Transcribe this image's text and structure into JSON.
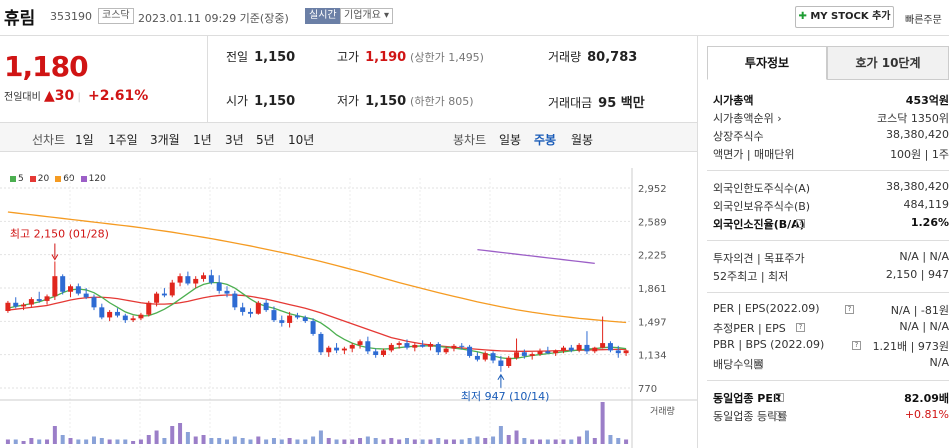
{
  "header": {
    "name": "휴림",
    "code": "353190",
    "market": "코스닥",
    "datetime": "2023.01.11 09:29 기준(장중)",
    "realtime": "실시간",
    "company_info": "기업개요 ▾",
    "mystock": "MY STOCK 추가",
    "quick_order": "빠른주문"
  },
  "price": {
    "current": "1,180",
    "change_label": "전일대비",
    "change": "▲30",
    "change_pct": "+2.61%"
  },
  "quote": {
    "prev_label": "전일",
    "prev": "1,150",
    "open_label": "시가",
    "open": "1,150",
    "high_label": "고가",
    "high": "1,190",
    "upper_limit": "(상한가 1,495)",
    "low_label": "저가",
    "low": "1,150",
    "lower_limit": "(하한가 805)",
    "volume_label": "거래량",
    "volume": "80,783",
    "amount_label": "거래대금",
    "amount": "95 백만"
  },
  "periods": {
    "line_label": "선차트",
    "line": [
      "1일",
      "1주일",
      "3개월",
      "1년",
      "3년",
      "5년",
      "10년"
    ],
    "candle_label": "봉차트",
    "candle": [
      "일봉",
      "주봉",
      "월봉"
    ],
    "selected": "주봉"
  },
  "chart_data": {
    "type": "candlestick",
    "ma_legend": [
      {
        "name": "5",
        "color": "#4caf50"
      },
      {
        "name": "20",
        "color": "#e53935"
      },
      {
        "name": "60",
        "color": "#f59b22"
      },
      {
        "name": "120",
        "color": "#9c5fc7"
      }
    ],
    "y_ticks": [
      "2,952",
      "2,589",
      "2,225",
      "1,861",
      "1,497",
      "1,134",
      "770"
    ],
    "ylim": [
      770,
      2952
    ],
    "high_annotation": "최고 2,150 (01/28)",
    "low_annotation": "최저 947 (10/14)",
    "volume_label": "거래량",
    "candles": [
      [
        1610,
        1720,
        1590,
        1700
      ],
      [
        1700,
        1760,
        1640,
        1660
      ],
      [
        1660,
        1700,
        1620,
        1680
      ],
      [
        1680,
        1760,
        1650,
        1740
      ],
      [
        1740,
        1820,
        1700,
        1720
      ],
      [
        1720,
        1790,
        1680,
        1770
      ],
      [
        1770,
        2150,
        1730,
        1990
      ],
      [
        1990,
        2010,
        1790,
        1820
      ],
      [
        1820,
        1900,
        1760,
        1880
      ],
      [
        1880,
        1910,
        1780,
        1800
      ],
      [
        1800,
        1860,
        1740,
        1760
      ],
      [
        1760,
        1790,
        1620,
        1650
      ],
      [
        1650,
        1690,
        1520,
        1540
      ],
      [
        1540,
        1620,
        1500,
        1600
      ],
      [
        1600,
        1640,
        1540,
        1560
      ],
      [
        1560,
        1580,
        1480,
        1510
      ],
      [
        1510,
        1560,
        1490,
        1530
      ],
      [
        1530,
        1590,
        1510,
        1570
      ],
      [
        1570,
        1720,
        1550,
        1700
      ],
      [
        1700,
        1820,
        1660,
        1800
      ],
      [
        1800,
        1860,
        1760,
        1780
      ],
      [
        1780,
        1950,
        1760,
        1920
      ],
      [
        1920,
        2020,
        1880,
        1990
      ],
      [
        1990,
        2040,
        1890,
        1910
      ],
      [
        1910,
        1990,
        1860,
        1960
      ],
      [
        1960,
        2030,
        1930,
        2000
      ],
      [
        2000,
        2060,
        1900,
        1920
      ],
      [
        1920,
        2000,
        1800,
        1830
      ],
      [
        1830,
        1880,
        1760,
        1800
      ],
      [
        1800,
        1830,
        1620,
        1650
      ],
      [
        1650,
        1700,
        1560,
        1600
      ],
      [
        1600,
        1640,
        1540,
        1580
      ],
      [
        1580,
        1720,
        1570,
        1700
      ],
      [
        1700,
        1730,
        1600,
        1620
      ],
      [
        1620,
        1660,
        1490,
        1510
      ],
      [
        1510,
        1560,
        1440,
        1480
      ],
      [
        1480,
        1600,
        1430,
        1560
      ],
      [
        1560,
        1590,
        1520,
        1540
      ],
      [
        1540,
        1560,
        1480,
        1500
      ],
      [
        1500,
        1530,
        1340,
        1360
      ],
      [
        1360,
        1380,
        1130,
        1160
      ],
      [
        1160,
        1230,
        1110,
        1210
      ],
      [
        1210,
        1260,
        1150,
        1180
      ],
      [
        1180,
        1220,
        1140,
        1200
      ],
      [
        1200,
        1260,
        1160,
        1240
      ],
      [
        1240,
        1300,
        1200,
        1280
      ],
      [
        1280,
        1330,
        1140,
        1170
      ],
      [
        1170,
        1200,
        1100,
        1130
      ],
      [
        1130,
        1200,
        1110,
        1180
      ],
      [
        1180,
        1260,
        1160,
        1240
      ],
      [
        1240,
        1280,
        1200,
        1260
      ],
      [
        1260,
        1300,
        1190,
        1210
      ],
      [
        1210,
        1260,
        1170,
        1240
      ],
      [
        1240,
        1290,
        1210,
        1220
      ],
      [
        1220,
        1270,
        1180,
        1250
      ],
      [
        1250,
        1270,
        1130,
        1160
      ],
      [
        1160,
        1220,
        1140,
        1200
      ],
      [
        1200,
        1250,
        1170,
        1230
      ],
      [
        1230,
        1260,
        1190,
        1220
      ],
      [
        1220,
        1240,
        1100,
        1120
      ],
      [
        1120,
        1160,
        1060,
        1080
      ],
      [
        1080,
        1170,
        1060,
        1150
      ],
      [
        1150,
        1170,
        1040,
        1070
      ],
      [
        1070,
        1120,
        947,
        1010
      ],
      [
        1010,
        1120,
        990,
        1100
      ],
      [
        1100,
        1310,
        1080,
        1160
      ],
      [
        1160,
        1190,
        1090,
        1120
      ],
      [
        1120,
        1160,
        1080,
        1140
      ],
      [
        1140,
        1200,
        1120,
        1170
      ],
      [
        1170,
        1220,
        1140,
        1150
      ],
      [
        1150,
        1190,
        1120,
        1180
      ],
      [
        1180,
        1230,
        1150,
        1210
      ],
      [
        1210,
        1240,
        1160,
        1180
      ],
      [
        1180,
        1260,
        1160,
        1240
      ],
      [
        1240,
        1390,
        1140,
        1170
      ],
      [
        1170,
        1220,
        1150,
        1210
      ],
      [
        1210,
        1550,
        1200,
        1260
      ],
      [
        1260,
        1280,
        1160,
        1180
      ],
      [
        1180,
        1230,
        1100,
        1150
      ],
      [
        1150,
        1190,
        1120,
        1180
      ]
    ],
    "volume": [
      3,
      3,
      2,
      4,
      3,
      3,
      12,
      6,
      4,
      3,
      3,
      5,
      4,
      3,
      3,
      3,
      2,
      3,
      6,
      9,
      4,
      12,
      14,
      8,
      5,
      6,
      4,
      4,
      3,
      5,
      4,
      3,
      5,
      3,
      4,
      3,
      4,
      3,
      3,
      5,
      9,
      4,
      3,
      3,
      3,
      4,
      5,
      4,
      3,
      4,
      3,
      4,
      3,
      3,
      3,
      4,
      3,
      3,
      3,
      4,
      5,
      4,
      5,
      12,
      6,
      9,
      4,
      3,
      3,
      3,
      3,
      3,
      3,
      5,
      9,
      4,
      28,
      6,
      4,
      3
    ],
    "ma5": [
      1640,
      1660,
      1675,
      1690,
      1710,
      1740,
      1770,
      1810,
      1840,
      1850,
      1840,
      1810,
      1760,
      1700,
      1650,
      1600,
      1570,
      1555,
      1560,
      1590,
      1630,
      1680,
      1740,
      1800,
      1860,
      1900,
      1920,
      1920,
      1900,
      1860,
      1800,
      1740,
      1690,
      1660,
      1640,
      1610,
      1580,
      1560,
      1540,
      1520,
      1480,
      1420,
      1350,
      1300,
      1260,
      1230,
      1210,
      1200,
      1195,
      1200,
      1210,
      1220,
      1225,
      1230,
      1230,
      1225,
      1215,
      1205,
      1195,
      1180,
      1165,
      1145,
      1120,
      1100,
      1090,
      1095,
      1110,
      1125,
      1135,
      1145,
      1155,
      1165,
      1175,
      1185,
      1195,
      1200,
      1210,
      1215,
      1210,
      1200
    ],
    "ma20": [
      1620,
      1630,
      1640,
      1650,
      1660,
      1670,
      1690,
      1710,
      1730,
      1745,
      1755,
      1760,
      1760,
      1755,
      1745,
      1730,
      1715,
      1700,
      1690,
      1685,
      1685,
      1690,
      1700,
      1715,
      1735,
      1755,
      1770,
      1780,
      1785,
      1785,
      1780,
      1770,
      1755,
      1740,
      1720,
      1700,
      1680,
      1660,
      1640,
      1615,
      1590,
      1560,
      1530,
      1500,
      1470,
      1440,
      1410,
      1380,
      1350,
      1320,
      1300,
      1280,
      1265,
      1250,
      1240,
      1230,
      1222,
      1215,
      1208,
      1200,
      1193,
      1186,
      1180,
      1175,
      1172,
      1170,
      1170,
      1171,
      1172,
      1174,
      1176,
      1178,
      1180,
      1182,
      1184,
      1186,
      1188,
      1190,
      1191,
      1192
    ],
    "ma60": [
      2690,
      2680,
      2670,
      2660,
      2650,
      2640,
      2630,
      2620,
      2610,
      2600,
      2590,
      2580,
      2570,
      2560,
      2550,
      2540,
      2530,
      2518,
      2506,
      2494,
      2482,
      2470,
      2456,
      2442,
      2428,
      2414,
      2400,
      2384,
      2368,
      2352,
      2336,
      2320,
      2302,
      2284,
      2266,
      2248,
      2230,
      2210,
      2190,
      2170,
      2150,
      2128,
      2106,
      2084,
      2062,
      2040,
      2016,
      1992,
      1968,
      1944,
      1920,
      1898,
      1876,
      1854,
      1832,
      1810,
      1790,
      1770,
      1750,
      1730,
      1710,
      1692,
      1674,
      1656,
      1640,
      1624,
      1610,
      1596,
      1584,
      1572,
      1560,
      1550,
      1540,
      1530,
      1522,
      1514,
      1506,
      1498,
      1491,
      1485
    ],
    "ma120": [
      2280,
      2270,
      2260,
      2250,
      2240,
      2230,
      2220,
      2210,
      2200,
      2190,
      2180,
      2170,
      2160,
      2150,
      2140,
      2130
    ]
  },
  "panel": {
    "tab_active": "투자정보",
    "tab_other": "호가 10단계",
    "rows": [
      {
        "k": "시가총액",
        "v": "453억원",
        "bold": true
      },
      {
        "k": "시가총액순위 ›",
        "v": "코스닥 1350위"
      },
      {
        "k": "상장주식수",
        "v": "38,380,420"
      },
      {
        "k": "액면가 | 매매단위",
        "v": "100원 | 1주"
      },
      {
        "k": "외국인한도주식수(A)",
        "v": "38,380,420"
      },
      {
        "k": "외국인보유주식수(B)",
        "v": "484,119"
      },
      {
        "k": "외국인소진율(B/A)",
        "v": "1.26%",
        "bold": true
      },
      {
        "k": "투자의견 | 목표주가",
        "v": "N/A | N/A"
      },
      {
        "k": "52주최고 | 최저",
        "v": "2,150 | 947"
      },
      {
        "k": "PER | EPS(2022.09)",
        "v": "N/A | -81원"
      },
      {
        "k": "추정PER | EPS",
        "v": "N/A | N/A"
      },
      {
        "k": "PBR | BPS (2022.09)",
        "v": "1.21배 | 973원"
      },
      {
        "k": "배당수익률",
        "v": "N/A"
      },
      {
        "k": "동일업종 PER",
        "v": "82.09배",
        "bold": true
      },
      {
        "k": "동일업종 등락률",
        "v": "+0.81%",
        "red": true
      }
    ]
  }
}
